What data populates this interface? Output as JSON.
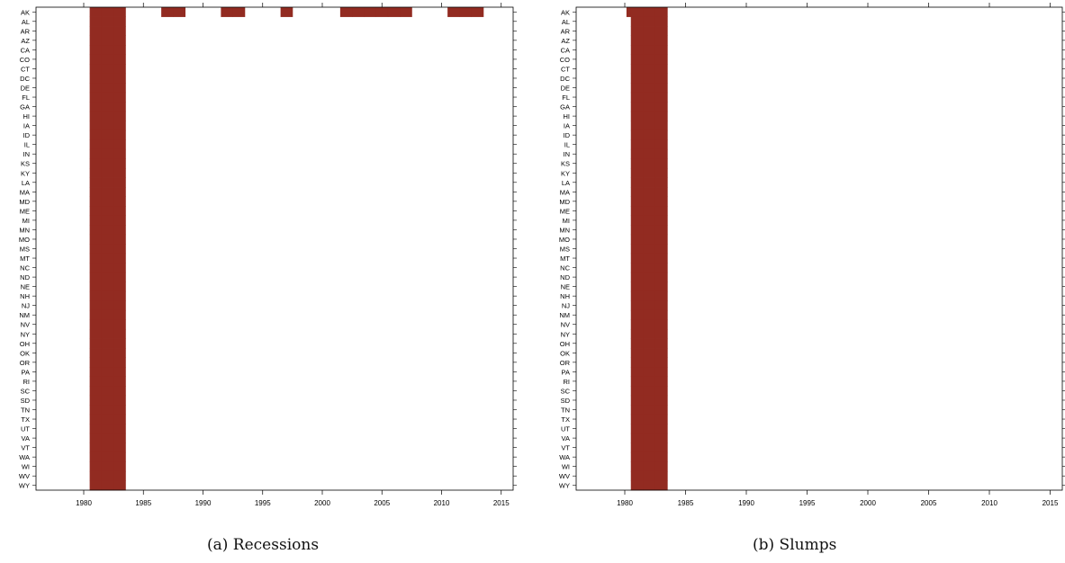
{
  "colors": {
    "cell_fill": "#922b21",
    "axis": "#000000",
    "background": "#ffffff"
  },
  "chart_data": [
    {
      "type": "heatmap",
      "caption": "(a) Recessions",
      "xlim": [
        1976,
        2016
      ],
      "x_ticks": [
        1980,
        1985,
        1990,
        1995,
        2000,
        2005,
        2010,
        2015
      ],
      "y_categories": [
        "AK",
        "AL",
        "AR",
        "AZ",
        "CA",
        "CO",
        "CT",
        "DC",
        "DE",
        "FL",
        "GA",
        "HI",
        "IA",
        "ID",
        "IL",
        "IN",
        "KS",
        "KY",
        "LA",
        "MA",
        "MD",
        "ME",
        "MI",
        "MN",
        "MO",
        "MS",
        "MT",
        "NC",
        "ND",
        "NE",
        "NH",
        "NJ",
        "NM",
        "NV",
        "NY",
        "OH",
        "OK",
        "OR",
        "PA",
        "RI",
        "SC",
        "SD",
        "TN",
        "TX",
        "UT",
        "VA",
        "VT",
        "WA",
        "WI",
        "WV",
        "WY"
      ],
      "cell_value_meaning": "row string index i corresponds to year 1977+i; '1' = filled cell",
      "rows": {
        "AK": "0000111000110001100010000111111000111000000000000111",
        "AL": "0000111000000000000000000000000000000000000000000000",
        "AR": "0000111000000000000000000000000000000000000000000000",
        "AZ": "0000111000000000000000000000000000000000000000000000",
        "CA": "0000111000000000000000000000000000000000000000000000",
        "CO": "0000111000000000000000000000000000000000000000000000",
        "CT": "0000111000000000000000000000000000000000000000000000",
        "DC": "0000111000000000000000000000000000000000000000000000",
        "DE": "0000111000000000000000000000000000000000000000000000",
        "FL": "0000111000000000000000000000000000000000000000000000",
        "GA": "0000111000000000000000000000000000000000000000000000",
        "HI": "0000111000000000000000000000000000000000000000000000",
        "IA": "0000111000000000000000000000000000000000000000000000",
        "ID": "0000111000000000000000000000000000000000000000000000",
        "IL": "0000111000000000000000000000000000000000000000000000",
        "IN": "0000111000000000000000000000000000000000000000000000",
        "KS": "0000111000000000000000000000000000000000000000000000",
        "KY": "0000111000000000000000000000000000000000000000000000",
        "LA": "0000111000000000000000000000000000000000000000000000",
        "MA": "0000111000000000000000000000000000000000000000000000",
        "MD": "0000111000000000000000000000000000000000000000000000",
        "ME": "0000111000000000000000000000000000000000000000000000",
        "MI": "0000111000000000000000000000000000000000000000000000",
        "MN": "0000111000000000000000000000000000000000000000000000",
        "MO": "0000111000000000000000000000000000000000000000000000",
        "MS": "0000111000000000000000000000000000000000000000000000",
        "MT": "0000111000000000000000000000000000000000000000000000",
        "NC": "0000111000000000000000000000000000000000000000000000",
        "ND": "0000111000000000000000000000000000000000000000000000",
        "NE": "0000111000000000000000000000000000000000000000000000",
        "NH": "0000111000000000000000000000000000000000000000000000",
        "NJ": "0000111000000000000000000000000000000000000000000000",
        "NM": "0000111000000000000000000000000000000000000000000000",
        "NV": "0000111000000000000000000000000000000000000000000000",
        "NY": "0000111000000000000000000000000000000000000000000000",
        "OH": "0000111000000000000000000000000000000000000000000000",
        "OK": "0000111000000000000000000000000000000000000000000000",
        "OR": "0000111000000000000000000000000000000000000000000000",
        "PA": "0000111000000000000000000000000000000000000000000000",
        "RI": "0000111000000000000000000000000000000000000000000000",
        "SC": "0000111000000000000000000000000000000000000000000000",
        "SD": "0000111000000000000000000000000000000000000000000000",
        "TN": "0000111000000000000000000000000000000000000000000000",
        "TX": "0000111000000000000000000000000000000000000000000000",
        "UT": "0000111000000000000000000000000000000000000000000000",
        "VA": "0000111000000000000000000000000000000000000000000000",
        "VT": "0000111000000000000000000000000000000000000000000000",
        "WA": "0000111000000000000000000000000000000000000000000000",
        "WI": "0000111000000000000000000000000000000000000000000000",
        "WV": "0000111000000000000000000000000000000000000000000000",
        "WY": "0000111000000000000000000000000000000000000000000000"
      }
    },
    {
      "type": "heatmap",
      "caption": "(b) Slumps",
      "xlim": [
        1976,
        2016
      ],
      "x_ticks": [
        1980,
        1985,
        1990,
        1995,
        2000,
        2005,
        2010,
        2015
      ],
      "y_categories": [
        "AK",
        "AL",
        "AR",
        "AZ",
        "CA",
        "CO",
        "CT",
        "DC",
        "DE",
        "FL",
        "GA",
        "HI",
        "IA",
        "ID",
        "IL",
        "IN",
        "KS",
        "KY",
        "LA",
        "MA",
        "MD",
        "ME",
        "MI",
        "MN",
        "MO",
        "MS",
        "MT",
        "NC",
        "ND",
        "NE",
        "NH",
        "NJ",
        "NM",
        "NV",
        "NY",
        "OH",
        "OK",
        "OR",
        "PA",
        "RI",
        "SC",
        "SD",
        "TN",
        "TX",
        "UT",
        "VA",
        "VT",
        "WA",
        "WI",
        "WV",
        "WY"
      ],
      "cell_value_meaning": "row string index i corresponds to year 1977+i; '1' = filled cell",
      "rows": {
        "AK": "0000111000000000000000000000000000000000000000000000",
        "AL": "0000111000000000000000000000000000000000000000000000",
        "AR": "0000111000000000000000000000000000000000000000000000",
        "AZ": "0000111000000000000000000000000000000000000000000000",
        "CA": "0000111000000000000000000000000000000000000000000000",
        "CO": "0000111000000000000000000000000000000000000000000000",
        "CT": "0000111000000000000000000000000000000000000000000000",
        "DC": "0000111000000000000000000000000000000000000000000000",
        "DE": "0000111000000000000000000000000000000000000000000000",
        "FL": "0000111000000000000000000000000000000000000000000000",
        "GA": "0000111000000000000000000000000000000000000000000000",
        "HI": "0000111000000000000000000000000000000000000000000000",
        "IA": "0000111000000000000000000000000000000000000000000000",
        "ID": "0000111000000000000000000000000000000000000000000000",
        "IL": "0000111000000000000000000000000000000000000000000000",
        "IN": "0000111000000000000000000000000000000000000000000000",
        "KS": "0000111000000000000000000000000000000000000000000000",
        "KY": "0000111000000000000000000000000000000000000000000000",
        "LA": "0000111000000000000000000000000000000000000000000000",
        "MA": "0000111000000000000000000000000000000000000000000000",
        "MD": "0000111000000000000000000000000000000000000000000000",
        "ME": "0000111000000000000000000000000000000000000000000000",
        "MI": "0000111000000000000000000000000000000000000000000000",
        "MN": "0000111000000000000000000000000000000000000000000000",
        "MO": "0000111000000000000000000000000000000000000000000000",
        "MS": "0000111000000000000000000000000000000000000000000000",
        "MT": "0000111000000000000000000000000000000000000000000000",
        "NC": "0000111000000000000000000000000000000000000000000000",
        "ND": "0000111000000000000000000000000000000000000000000000",
        "NE": "0000111000000000000000000000000000000000000000000000",
        "NH": "0000111000000000000000000000000000000000000000000000",
        "NJ": "0000111000000000000000000000000000000000000000000000",
        "NM": "0000111000000000000000000000000000000000000000000000",
        "NV": "0000111000000000000000000000000000000000000000000000",
        "NY": "0000111000000000000000000000000000000000000000000000",
        "OH": "0000111000000000000000000000000000000000000000000000",
        "OK": "0000111000000000000000000000000000000000000000000000",
        "OR": "0000111000000000000000000000000000000000000000000000",
        "PA": "0000111000000000000000000000000000000000000000000000",
        "RI": "0000111000000000000000000000000000000000000000000000",
        "SC": "0000111000000000000000000000000000000000000000000000",
        "SD": "0000111000000000000000000000000000000000000000000000",
        "TN": "0000111000000000000000000000000000000000000000000000",
        "TX": "0000111000000000000000000000000000000000000000000000",
        "UT": "0000111000000000000000000000000000000000000000000000",
        "VA": "0000111000000000000000000000000000000000000000000000",
        "VT": "0000111000000000000000000000000000000000000000000000",
        "WA": "0000111000000000000000000000000000000000000000000000",
        "WI": "0000111000000000000000000000000000000000000000000000",
        "WV": "0000111000000000000000000000000000000000000000000000",
        "WY": "0000111000000000000000000000000000000000000000000000"
      }
    }
  ]
}
